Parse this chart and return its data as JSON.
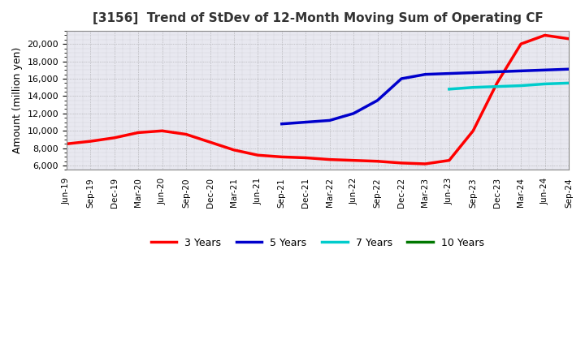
{
  "title": "[3156]  Trend of StDev of 12-Month Moving Sum of Operating CF",
  "ylabel": "Amount (million yen)",
  "ylim": [
    5500,
    21500
  ],
  "yticks": [
    6000,
    8000,
    10000,
    12000,
    14000,
    16000,
    18000,
    20000
  ],
  "background_color": "#ffffff",
  "plot_bg_color": "#e8e8f0",
  "grid_color": "#888888",
  "series_3y": {
    "color": "#ff0000",
    "label": "3 Years",
    "x_months": [
      0,
      3,
      6,
      9,
      12,
      15,
      18,
      21,
      24,
      27,
      30,
      33,
      36,
      39,
      42,
      45,
      48,
      51,
      54,
      57,
      60,
      63
    ],
    "data": [
      8500,
      8800,
      9200,
      9800,
      10000,
      9600,
      8700,
      7800,
      7200,
      7000,
      6900,
      6700,
      6600,
      6500,
      6300,
      6200,
      6600,
      10000,
      15500,
      20000,
      21000,
      20600
    ]
  },
  "series_5y": {
    "color": "#0000cc",
    "label": "5 Years",
    "x_months": [
      27,
      30,
      33,
      36,
      39,
      42,
      45,
      48,
      51,
      54,
      57,
      60,
      63
    ],
    "data": [
      10800,
      11000,
      11200,
      12000,
      13500,
      16000,
      16500,
      16600,
      16700,
      16800,
      16900,
      17000,
      17100
    ]
  },
  "series_7y": {
    "color": "#00cccc",
    "label": "7 Years",
    "x_months": [
      48,
      51,
      54,
      57,
      60,
      63
    ],
    "data": [
      14800,
      15000,
      15100,
      15200,
      15400,
      15500
    ]
  },
  "series_10y": {
    "color": "#007700",
    "label": "10 Years",
    "x_months": [],
    "data": []
  },
  "x_labels": [
    "Jun-19",
    "Sep-19",
    "Dec-19",
    "Mar-20",
    "Jun-20",
    "Sep-20",
    "Dec-20",
    "Mar-21",
    "Jun-21",
    "Sep-21",
    "Dec-21",
    "Mar-22",
    "Jun-22",
    "Sep-22",
    "Dec-22",
    "Mar-23",
    "Jun-23",
    "Sep-23",
    "Dec-23",
    "Mar-24",
    "Jun-24",
    "Sep-24"
  ],
  "tick_months": [
    0,
    3,
    6,
    9,
    12,
    15,
    18,
    21,
    24,
    27,
    30,
    33,
    36,
    39,
    42,
    45,
    48,
    51,
    54,
    57,
    60,
    63
  ]
}
